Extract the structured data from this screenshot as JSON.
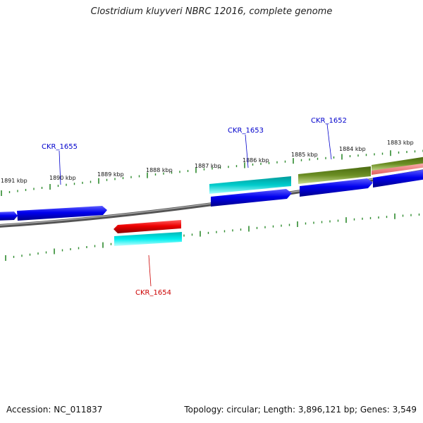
{
  "title": "Clostridium kluyveri NBRC 12016, complete genome",
  "footer": {
    "accession": "Accession: NC_011837",
    "summary": "Topology: circular; Length: 3,896,121 bp; Genes: 3,549"
  },
  "kbp_labels": [
    "1891 kbp",
    "1890 kbp",
    "1889 kbp",
    "1888 kbp",
    "1887 kbp",
    "1886 kbp",
    "1885 kbp",
    "1884 kbp",
    "1883 kbp"
  ],
  "gene_labels": [
    {
      "id": "CKR_1655",
      "color": "#0000cc"
    },
    {
      "id": "CKR_1654",
      "color": "#cc0000"
    },
    {
      "id": "CKR_1653",
      "color": "#0000cc"
    },
    {
      "id": "CKR_1652",
      "color": "#0000cc"
    }
  ],
  "colors": {
    "forward_gene": "#0000ee",
    "reverse_gene": "#ee0000",
    "cds_cyan": "#00cccc",
    "cds_olive": "#6b8e23",
    "pink": "#f08080",
    "backbone": "#808080",
    "ticks": "#2e8b2e"
  }
}
